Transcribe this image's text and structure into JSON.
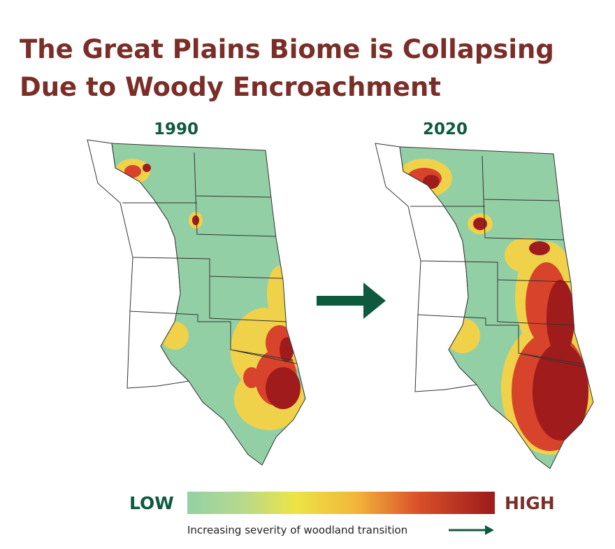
{
  "title": "The Great Plains Biome is Collapsing Due to Woody Encroachment",
  "maps": [
    {
      "label": "1990"
    },
    {
      "label": "2020"
    }
  ],
  "legend": {
    "low": "LOW",
    "high": "HIGH",
    "caption": "Increasing severity of woodland transition"
  }
}
